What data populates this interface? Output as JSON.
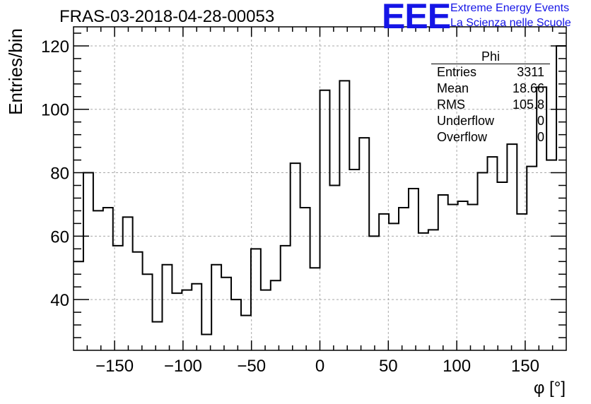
{
  "title": "FRAS-03-2018-04-28-00053",
  "logo": {
    "mark": "EEE",
    "line1": "Extreme Energy Events",
    "line2": "La Scienza nelle Scuole",
    "color": "#1515e6"
  },
  "stats_box": {
    "name": "Phi",
    "rows": [
      {
        "label": "Entries",
        "value": "3311"
      },
      {
        "label": "Mean",
        "value": "18.66"
      },
      {
        "label": "RMS",
        "value": "105.8"
      },
      {
        "label": "Underflow",
        "value": "0"
      },
      {
        "label": "Overflow",
        "value": "0"
      }
    ]
  },
  "chart_data": {
    "type": "histogram",
    "title": "FRAS-03-2018-04-28-00053",
    "xlabel": "φ [°]",
    "ylabel": "Entries/bin",
    "xlim": [
      -180,
      180
    ],
    "ylim": [
      24,
      126
    ],
    "grid": true,
    "bin_width": 7.2,
    "bin_edges_start": -180,
    "values": [
      52,
      80,
      68,
      69,
      57,
      66,
      55,
      48,
      33,
      51,
      42,
      43,
      45,
      29,
      51,
      47,
      40,
      35,
      56,
      43,
      46,
      57,
      83,
      69,
      50,
      106,
      76,
      109,
      81,
      91,
      60,
      67,
      64,
      69,
      75,
      61,
      62,
      73,
      70,
      71,
      70,
      80,
      85,
      77,
      89,
      67,
      82,
      107,
      84,
      120
    ],
    "x_ticks": [
      -150,
      -100,
      -50,
      0,
      50,
      100,
      150
    ],
    "x_tick_labels": [
      "−150",
      "−100",
      "−50",
      "0",
      "50",
      "100",
      "150"
    ],
    "y_ticks": [
      40,
      60,
      80,
      100,
      120
    ],
    "y_tick_labels": [
      "40",
      "60",
      "80",
      "100",
      "120"
    ]
  }
}
